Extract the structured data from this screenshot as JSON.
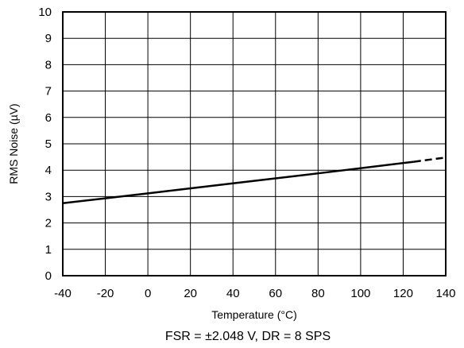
{
  "chart_data": {
    "type": "line",
    "xlabel": "Temperature (°C)",
    "ylabel": "RMS Noise (µV)",
    "caption": "FSR = ±2.048 V, DR = 8 SPS",
    "xlim": [
      -40,
      140
    ],
    "ylim": [
      0,
      10
    ],
    "xticks": [
      -40,
      -20,
      0,
      20,
      40,
      60,
      80,
      100,
      120,
      140
    ],
    "yticks": [
      0,
      1,
      2,
      3,
      4,
      5,
      6,
      7,
      8,
      9,
      10
    ],
    "grid": true,
    "series": [
      {
        "style": "solid",
        "color": "#000000",
        "x": [
          -40,
          0,
          40,
          80,
          125
        ],
        "y": [
          2.75,
          3.12,
          3.5,
          3.88,
          4.32
        ]
      },
      {
        "style": "dashed",
        "color": "#000000",
        "x": [
          125,
          140
        ],
        "y": [
          4.32,
          4.48
        ]
      }
    ]
  }
}
